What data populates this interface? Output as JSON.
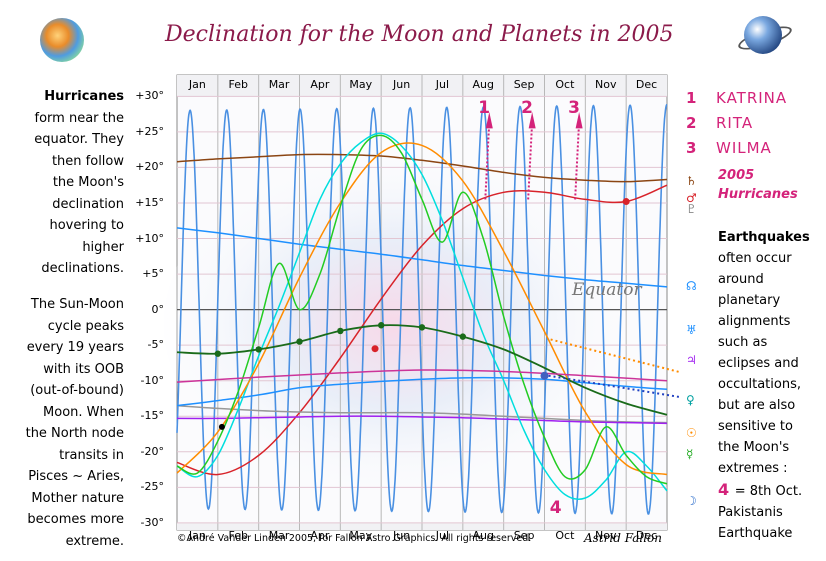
{
  "title": "Declination for the Moon and Planets in 2005",
  "left_text": {
    "p1": [
      "Hurricanes",
      "form near the",
      "equator. They",
      "then follow",
      "the Moon's",
      "declination",
      "hovering to",
      "higher",
      "declinations."
    ],
    "p2": [
      "The Sun-Moon",
      "cycle peaks",
      "every 19 years",
      "with its OOB",
      "(out-of-bound)",
      "Moon.  When",
      "the North node",
      "transits in",
      "Pisces ~ Aries,",
      "Mother nature",
      "becomes more",
      "extreme."
    ]
  },
  "hurricanes": [
    {
      "num": "1",
      "name": "KATRINA"
    },
    {
      "num": "2",
      "name": "RITA"
    },
    {
      "num": "3",
      "name": "WILMA"
    }
  ],
  "hurricanes_label": [
    "2005",
    "Hurricanes"
  ],
  "earthquake_text": {
    "heading": "Earthquakes",
    "lines": [
      "often occur",
      "around",
      "planetary",
      "alignments",
      "such as",
      "eclipses and",
      "occultations,",
      "but are also",
      "sensitive to",
      "the Moon's",
      "extremes :"
    ],
    "num": "4",
    "note_lines": [
      "= 8th Oct.",
      "Pakistanis",
      "Earthquake"
    ]
  },
  "equator_label": "Equator",
  "copyright": "©André Vander Linden 2005, for Fallon Astro Graphics. All rights reserved.",
  "signature": "Astrid Fallon",
  "planet_glyphs": [
    {
      "symbol": "♄",
      "color": "#8b4513"
    },
    {
      "symbol": "♂",
      "color": "#d8232a"
    },
    {
      "symbol": "♇",
      "color": "#888888"
    },
    {
      "symbol": "☊",
      "color": "#1e90ff"
    },
    {
      "symbol": "♅",
      "color": "#1e90ff"
    },
    {
      "symbol": "♃",
      "color": "#a020f0"
    },
    {
      "symbol": "♀",
      "color": "#00a0a0"
    },
    {
      "symbol": "☉",
      "color": "#ff8c00"
    },
    {
      "symbol": "☿",
      "color": "#22aa22"
    },
    {
      "symbol": "☽",
      "color": "#1e64c8"
    }
  ],
  "chart_data": {
    "type": "line",
    "title": "Declination for the Moon and Planets in 2005",
    "xlabel": "",
    "ylabel": "",
    "months": [
      "Jan",
      "Feb",
      "Mar",
      "Apr",
      "May",
      "Jun",
      "Jul",
      "Aug",
      "Sep",
      "Oct",
      "Nov",
      "Dec"
    ],
    "y_ticks": [
      "+30°",
      "+25°",
      "+20°",
      "+15°",
      "+10°",
      "+5°",
      "0°",
      "-5°",
      "-10°",
      "-15°",
      "-20°",
      "-25°",
      "-30°"
    ],
    "ylim": [
      -31,
      33
    ],
    "xlim": [
      0,
      12
    ],
    "grid": true,
    "moon": {
      "name": "Moon",
      "color": "#4a90e2",
      "amplitude_start": 28.0,
      "amplitude_end": 28.8,
      "period_months": 0.898,
      "phase_months": 0.32
    },
    "series": [
      {
        "symbol": "♄",
        "color": "#8b4513",
        "x": [
          0,
          1,
          2,
          3,
          4,
          5,
          6,
          7,
          8,
          9,
          10,
          11,
          12
        ],
        "y": [
          20.8,
          21.2,
          21.5,
          21.8,
          21.8,
          21.6,
          21.0,
          20.2,
          19.3,
          18.6,
          18.2,
          18.0,
          18.3
        ]
      },
      {
        "symbol": "♂",
        "color": "#d8232a",
        "x": [
          0,
          1,
          2,
          3,
          4,
          5,
          6,
          7,
          8,
          9,
          10,
          11,
          12
        ],
        "y": [
          -21.5,
          -23.2,
          -20.5,
          -14.5,
          -6.8,
          1.5,
          9.0,
          14.2,
          16.5,
          16.5,
          15.5,
          15.2,
          17.5
        ]
      },
      {
        "symbol": "♇",
        "color": "#999999",
        "x": [
          0,
          1,
          2,
          3,
          4,
          5,
          6,
          7,
          8,
          9,
          10,
          11,
          12
        ],
        "y": [
          -13.5,
          -13.9,
          -14.2,
          -14.4,
          -14.5,
          -14.5,
          -14.5,
          -14.7,
          -15.0,
          -15.3,
          -15.6,
          -15.8,
          -15.9
        ]
      },
      {
        "symbol": "☊",
        "color": "#1e90ff",
        "x": [
          0,
          1,
          2,
          3,
          4,
          5,
          6,
          7,
          8,
          9,
          10,
          11,
          12
        ],
        "y": [
          11.5,
          10.8,
          10.0,
          9.2,
          8.5,
          7.8,
          7.0,
          6.2,
          5.5,
          4.8,
          4.2,
          3.7,
          3.2
        ]
      },
      {
        "symbol": "♅",
        "color": "#1e90ff",
        "x": [
          0,
          1,
          2,
          3,
          4,
          5,
          6,
          7,
          8,
          9,
          10,
          11,
          12
        ],
        "y": [
          -13.5,
          -12.8,
          -12.0,
          -11.0,
          -10.5,
          -10.1,
          -9.8,
          -9.6,
          -9.6,
          -9.8,
          -10.3,
          -10.8,
          -11.2
        ]
      },
      {
        "symbol": "♃",
        "color": "#a020f0",
        "x": [
          0,
          1,
          2,
          3,
          4,
          5,
          6,
          7,
          8,
          9,
          10,
          11,
          12
        ],
        "y": [
          -15.3,
          -15.3,
          -15.2,
          -15.1,
          -15.0,
          -15.0,
          -15.1,
          -15.2,
          -15.4,
          -15.6,
          -15.8,
          -15.9,
          -16.0
        ]
      },
      {
        "symbol": "♀",
        "color": "#00dede",
        "x": [
          0,
          0.5,
          1,
          1.5,
          2,
          2.5,
          3,
          3.5,
          4,
          4.5,
          5,
          5.5,
          6,
          6.5,
          7,
          7.5,
          8,
          8.5,
          9,
          9.5,
          10,
          10.5,
          11,
          11.5,
          12
        ],
        "y": [
          -22.0,
          -23.5,
          -20.5,
          -14.0,
          -6.5,
          0.5,
          8.0,
          15.5,
          20.5,
          23.5,
          24.8,
          23.0,
          19.0,
          12.5,
          4.5,
          -3.5,
          -10.0,
          -17.0,
          -22.5,
          -26.0,
          -26.5,
          -24.0,
          -20.0,
          -22.0,
          -25.5
        ]
      },
      {
        "symbol": "☉",
        "color": "#ff8c00",
        "x": [
          0,
          1,
          2,
          3,
          4,
          5,
          6,
          7,
          8,
          9,
          10,
          11,
          12
        ],
        "y": [
          -23.0,
          -17.2,
          -7.6,
          4.5,
          15.0,
          22.1,
          23.1,
          18.1,
          8.2,
          -3.1,
          -14.4,
          -21.8,
          -23.2
        ]
      },
      {
        "symbol": "☿",
        "color": "#22cc22",
        "x": [
          0,
          0.5,
          1,
          1.5,
          2,
          2.5,
          3,
          3.5,
          4,
          4.5,
          5,
          5.5,
          6,
          6.5,
          7,
          7.5,
          8,
          8.5,
          9,
          9.5,
          10,
          10.5,
          11,
          11.5,
          12
        ],
        "y": [
          -22.0,
          -23.0,
          -18.5,
          -11.5,
          -2.5,
          6.5,
          0.0,
          5.0,
          14.5,
          22.5,
          24.5,
          22.0,
          15.5,
          9.5,
          16.5,
          10.0,
          -1.0,
          -10.5,
          -18.0,
          -23.5,
          -22.5,
          -16.5,
          -20.5,
          -23.5,
          -24.5
        ]
      },
      {
        "symbol": "node",
        "color": "#1a6b1a",
        "x": [
          0,
          1,
          2,
          3,
          4,
          5,
          6,
          7,
          8,
          9,
          10,
          11,
          12
        ],
        "y": [
          -6.0,
          -6.2,
          -5.6,
          -4.5,
          -3.0,
          -2.2,
          -2.5,
          -3.8,
          -5.6,
          -8.2,
          -11.0,
          -13.2,
          -14.8
        ]
      },
      {
        "symbol": "horizon",
        "color": "#cc3399",
        "x": [
          0,
          2,
          4,
          6,
          8,
          10,
          12
        ],
        "y": [
          -10.2,
          -9.5,
          -8.9,
          -8.5,
          -8.7,
          -9.3,
          -10.0
        ]
      }
    ],
    "hurricane_months": [
      {
        "num": "1",
        "month": 7.55
      },
      {
        "num": "2",
        "month": 8.6
      },
      {
        "num": "3",
        "month": 9.75
      }
    ],
    "earthquake": {
      "num": "4",
      "month": 9.25
    }
  }
}
